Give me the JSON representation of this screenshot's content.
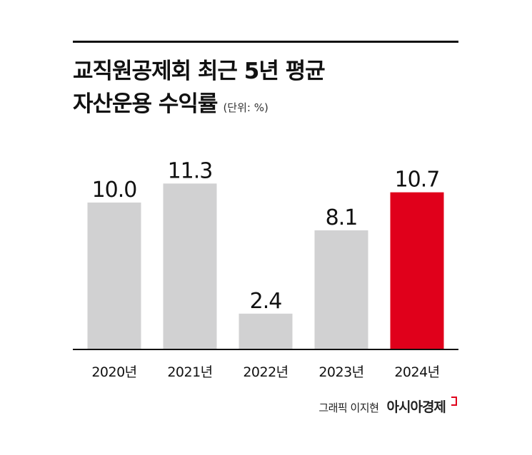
{
  "title_line1": "교직원공제회 최근 5년 평균",
  "title_line2": "자산운용 수익률",
  "unit_label": "(단위: %)",
  "credit": {
    "author": "그래픽 이지현",
    "logo": "아시아경제"
  },
  "colors": {
    "bar": "#d1d1d2",
    "highlight": "#e0001b",
    "axis": "#111111",
    "text": "#111111"
  },
  "chart_data": {
    "type": "bar",
    "categories": [
      "2020년",
      "2021년",
      "2022년",
      "2023년",
      "2024년"
    ],
    "values": [
      10.0,
      11.3,
      2.4,
      8.1,
      10.7
    ],
    "value_labels": [
      "10.0",
      "11.3",
      "2.4",
      "8.1",
      "10.7"
    ],
    "highlight_index": 4,
    "title": "교직원공제회 최근 5년 평균 자산운용 수익률",
    "ylabel": "(단위: %)",
    "ylim": [
      0,
      12
    ],
    "grid": false,
    "legend": "none"
  }
}
